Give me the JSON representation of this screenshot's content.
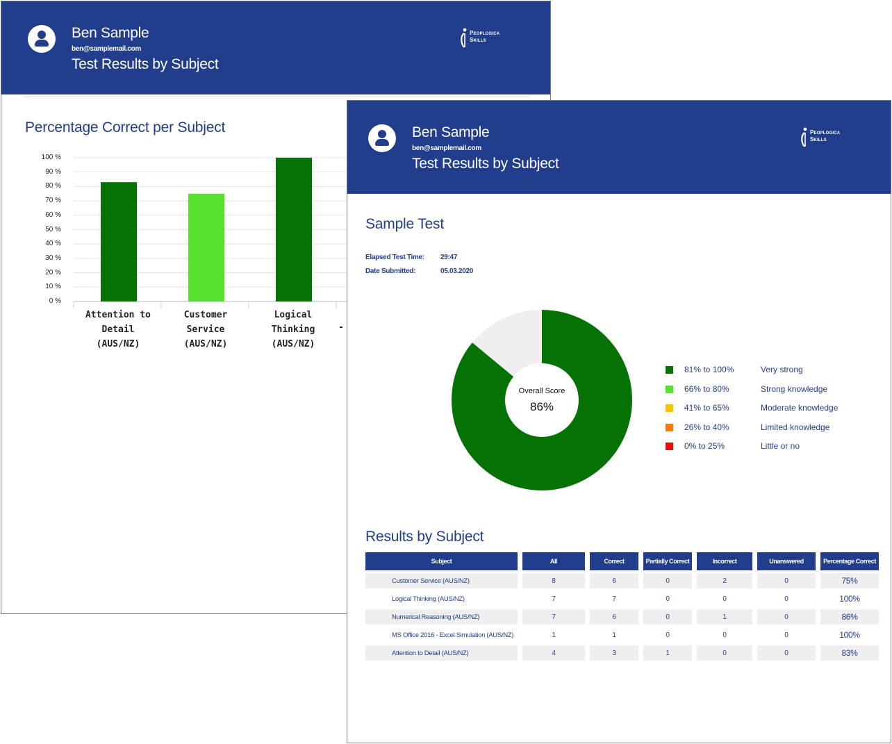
{
  "colors": {
    "brand": "#223d8b",
    "dark_green": "#047204",
    "light_green": "#56e22e",
    "yellow": "#f6c400",
    "orange": "#f07a0c",
    "red": "#ee0b0b",
    "remainder": "#efefef"
  },
  "back_page": {
    "header": {
      "name": "Ben Sample",
      "email": "ben@samplemail.com",
      "title": "Test Results by Subject",
      "logo_line1": "Peoplogica",
      "logo_line2": "Skills"
    },
    "section_title": "Percentage Correct per Subject",
    "chart_data": {
      "type": "bar",
      "categories": [
        "Attention to Detail (AUS/NZ)",
        "Customer Service (AUS/NZ)",
        "Logical Thinking (AUS/NZ)"
      ],
      "category_lines": [
        [
          "Attention to",
          "Detail",
          "(AUS/NZ)"
        ],
        [
          "Customer",
          "Service",
          "(AUS/NZ)"
        ],
        [
          "Logical",
          "Thinking",
          "(AUS/NZ)"
        ]
      ],
      "values": [
        83,
        75,
        100
      ],
      "bar_colors": [
        "#047204",
        "#56e22e",
        "#047204"
      ],
      "ylim": [
        0,
        100
      ],
      "yticks": [
        "0 %",
        "10 %",
        "20 %",
        "30 %",
        "40 %",
        "50 %",
        "60 %",
        "70 %",
        "80 %",
        "90 %",
        "100 %"
      ],
      "grid": true,
      "clipped_label_fragment": "- I"
    }
  },
  "front_page": {
    "header": {
      "name": "Ben Sample",
      "email": "ben@samplemail.com",
      "title": "Test Results by Subject",
      "logo_line1": "Peoplogica",
      "logo_line2": "Skills"
    },
    "test_title": "Sample Test",
    "elapsed_label": "Elapsed Test Time:",
    "elapsed_value": "29:47",
    "submitted_label": "Date Submitted:",
    "submitted_value": "05.03.2020",
    "overall": {
      "label": "Overall Score",
      "value": "86%",
      "fraction": 0.86
    },
    "legend": [
      {
        "range": "81% to 100%",
        "desc": "Very strong",
        "color": "#047204"
      },
      {
        "range": "66% to 80%",
        "desc": "Strong knowledge",
        "color": "#56e22e"
      },
      {
        "range": "41% to 65%",
        "desc": "Moderate knowledge",
        "color": "#f6c400"
      },
      {
        "range": "26% to 40%",
        "desc": "Limited knowledge",
        "color": "#f07a0c"
      },
      {
        "range": "0% to 25%",
        "desc": "Little or no",
        "color": "#ee0b0b"
      }
    ],
    "results_title": "Results by Subject",
    "table_headers": [
      "Subject",
      "All",
      "Correct",
      "Partially Correct",
      "Incorrect",
      "Unanswered",
      "Percentage Correct"
    ],
    "table_rows": [
      [
        "Customer Service (AUS/NZ)",
        "8",
        "6",
        "0",
        "2",
        "0",
        "75%"
      ],
      [
        "Logical Thinking (AUS/NZ)",
        "7",
        "7",
        "0",
        "0",
        "0",
        "100%"
      ],
      [
        "Numerical Reasoning (AUS/NZ)",
        "7",
        "6",
        "0",
        "1",
        "0",
        "86%"
      ],
      [
        "MS Office 2016 - Excel Simulation (AUS/NZ)",
        "1",
        "1",
        "0",
        "0",
        "0",
        "100%"
      ],
      [
        "Attention to Detail (AUS/NZ)",
        "4",
        "3",
        "1",
        "0",
        "0",
        "83%"
      ]
    ]
  }
}
